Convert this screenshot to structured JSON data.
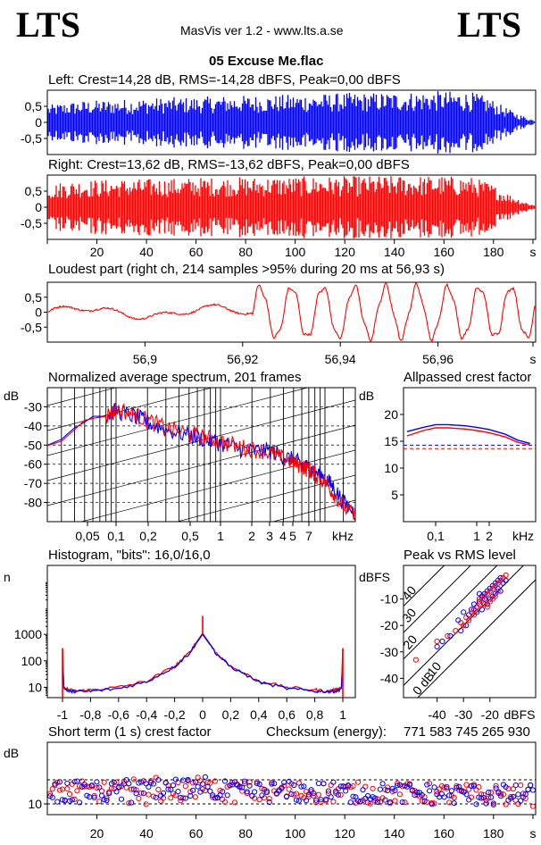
{
  "header": {
    "logo_left": "LTS",
    "logo_right": "LTS",
    "app_title": "MasVis ver 1.2 - www.lts.a.se",
    "file_title": "05 Excuse Me.flac"
  },
  "colors": {
    "left": "#0000ff",
    "right": "#ff0000",
    "axis": "#000000"
  },
  "chart_data": [
    {
      "id": "wave_left",
      "type": "area",
      "title": "Left: Crest=14,28 dB, RMS=-14,28 dBFS, Peak=0,00 dBFS",
      "series": [
        {
          "values": [
            0.55,
            0.62,
            0.68,
            0.7,
            0.72,
            0.74,
            0.76,
            0.78,
            0.8,
            0.8,
            0.82,
            0.84,
            0.85,
            0.86,
            0.86,
            0.88,
            0.9,
            0.9,
            0.92,
            0.94,
            0.94,
            0.95,
            0.96,
            0.97,
            0.98,
            1.0,
            0.98,
            0.96,
            0.8,
            0.5,
            0.25,
            0.05
          ]
        }
      ],
      "x_range": [
        0,
        197
      ],
      "ylim": [
        -1,
        1
      ],
      "yticks": [
        "0,5",
        "0",
        "-0,5"
      ]
    },
    {
      "id": "wave_right",
      "type": "area",
      "title": "Right: Crest=13,62 dB, RMS=-13,62 dBFS, Peak=0,00 dBFS",
      "series": [
        {
          "values": [
            0.7,
            0.82,
            0.86,
            0.88,
            0.88,
            0.9,
            0.9,
            0.92,
            0.92,
            0.94,
            0.95,
            0.95,
            0.96,
            0.96,
            0.97,
            0.97,
            0.98,
            0.98,
            0.98,
            0.99,
            0.99,
            1.0,
            1.0,
            1.0,
            1.0,
            1.0,
            0.98,
            0.96,
            0.8,
            0.5,
            0.25,
            0.05
          ]
        }
      ],
      "x_range": [
        0,
        197
      ],
      "ylim": [
        -1,
        1
      ],
      "xticks": [
        "20",
        "40",
        "60",
        "80",
        "100",
        "120",
        "140",
        "160",
        "180",
        "s"
      ],
      "yticks": [
        "0,5",
        "0",
        "-0,5"
      ]
    },
    {
      "id": "loudest",
      "type": "line",
      "title": "Loudest part (right ch, 214 samples >95% during 20 ms at 56,93 s)",
      "x_range": [
        56.88,
        56.98
      ],
      "ylim": [
        -1,
        1
      ],
      "xticks": [
        "56,9",
        "56,92",
        "56,94",
        "56,96",
        "s"
      ],
      "yticks": [
        "0,5",
        "0",
        "-0,5"
      ]
    },
    {
      "id": "spectrum",
      "type": "line",
      "title": "Normalized average spectrum, 201 frames",
      "ylabel": "dB",
      "ylim": [
        -90,
        -20
      ],
      "yticks": [
        "-30",
        "-40",
        "-50",
        "-60",
        "-70",
        "-80"
      ],
      "xticks": [
        "0,05",
        "0,1",
        "0,2",
        "0,5",
        "1",
        "2",
        "3",
        "4",
        "5",
        "7",
        "kHz"
      ],
      "series": [
        {
          "name": "left",
          "x": [
            0.0125,
            0.02,
            0.03,
            0.04,
            0.05,
            0.06,
            0.08,
            0.1,
            0.15,
            0.2,
            0.3,
            0.5,
            0.7,
            1,
            1.5,
            2,
            3,
            4,
            5,
            6,
            7,
            8,
            10,
            12,
            15,
            20
          ],
          "y": [
            -51,
            -51,
            -47,
            -41,
            -38,
            -35,
            -35,
            -32,
            -35,
            -38,
            -42,
            -45,
            -47,
            -49,
            -52,
            -53,
            -53,
            -56,
            -58,
            -60,
            -62,
            -64,
            -67,
            -72,
            -80,
            -86
          ]
        },
        {
          "name": "right",
          "x": [
            0.0125,
            0.02,
            0.03,
            0.04,
            0.05,
            0.06,
            0.08,
            0.1,
            0.15,
            0.2,
            0.3,
            0.5,
            0.7,
            1,
            1.5,
            2,
            3,
            4,
            5,
            6,
            7,
            8,
            10,
            12,
            15,
            20
          ],
          "y": [
            -51,
            -51,
            -48,
            -42,
            -37,
            -36,
            -35,
            -31,
            -34,
            -37,
            -41,
            -44,
            -46,
            -48,
            -51,
            -52,
            -54,
            -57,
            -59,
            -61,
            -63,
            -65,
            -69,
            -75,
            -82,
            -88
          ]
        }
      ]
    },
    {
      "id": "allpass",
      "type": "line",
      "title": "Allpassed crest factor",
      "ylabel": "dB",
      "ylim": [
        0,
        25
      ],
      "yticks": [
        "20",
        "15",
        "10",
        "5"
      ],
      "xticks": [
        "0,1",
        "1",
        "2",
        "kHz"
      ],
      "series": [
        {
          "name": "left",
          "x": [
            0.02,
            0.05,
            0.1,
            0.2,
            0.5,
            1,
            2,
            5,
            10,
            20
          ],
          "y": [
            16.8,
            17.6,
            18.1,
            18.1,
            17.9,
            17.6,
            17.2,
            16.3,
            15.2,
            14.6
          ]
        },
        {
          "name": "right",
          "x": [
            0.02,
            0.05,
            0.1,
            0.2,
            0.5,
            1,
            2,
            5,
            10,
            20
          ],
          "y": [
            16.0,
            17.0,
            17.5,
            17.5,
            17.3,
            17.0,
            16.6,
            15.8,
            14.8,
            14.3
          ]
        }
      ],
      "dashed_levels": [
        {
          "series": "left",
          "value": 14.28
        },
        {
          "series": "right",
          "value": 13.62
        }
      ]
    },
    {
      "id": "histogram",
      "type": "line",
      "title": "Histogram, \"bits\": 16,0/16,0",
      "ylabel": "n",
      "yscale": "log",
      "ylim": [
        1,
        100000
      ],
      "yticks": [
        "1000",
        "100",
        "10"
      ],
      "xticks": [
        "-1",
        "-0,8",
        "-0,6",
        "-0,4",
        "-0,2",
        "0",
        "0,2",
        "0,4",
        "0,6",
        "0,8",
        "1"
      ],
      "series": [
        {
          "name": "left",
          "x": [
            -1,
            -0.99,
            -0.95,
            -0.9,
            -0.8,
            -0.6,
            -0.4,
            -0.2,
            -0.1,
            0,
            0.1,
            0.2,
            0.4,
            0.6,
            0.8,
            0.9,
            0.95,
            0.99,
            1
          ],
          "y": [
            60,
            9,
            7,
            7,
            7,
            9,
            16,
            60,
            180,
            1000,
            180,
            60,
            16,
            9,
            7,
            7,
            7,
            9,
            60
          ]
        },
        {
          "name": "right",
          "x": [
            -1,
            -0.99,
            -0.95,
            -0.9,
            -0.8,
            -0.6,
            -0.4,
            -0.2,
            -0.1,
            0,
            0.1,
            0.2,
            0.4,
            0.6,
            0.8,
            0.9,
            0.95,
            0.99,
            1
          ],
          "y": [
            300,
            10,
            8,
            7,
            8,
            10,
            17,
            62,
            190,
            1100,
            190,
            62,
            17,
            10,
            8,
            7,
            8,
            10,
            300
          ]
        }
      ]
    },
    {
      "id": "peak_rms",
      "type": "scatter",
      "title": "Peak vs RMS level",
      "ylabel": "dBFS",
      "xlabel": "dBFS",
      "xlim": [
        -50,
        0
      ],
      "ylim": [
        -50,
        0
      ],
      "xticks": [
        "-40",
        "-30",
        "-20",
        "dBFS"
      ],
      "yticks": [
        "-10",
        "-20",
        "-30",
        "-40"
      ],
      "crest_lines": [
        "0 dB",
        "10",
        "20",
        "30",
        "40"
      ],
      "series": [
        {
          "name": "left",
          "points": [
            [
              -32,
              -18
            ],
            [
              -30,
              -15
            ],
            [
              -28,
              -16
            ],
            [
              -27,
              -14
            ],
            [
              -26,
              -12
            ],
            [
              -25,
              -13
            ],
            [
              -24,
              -11
            ],
            [
              -23,
              -9
            ],
            [
              -22,
              -8
            ],
            [
              -21,
              -7
            ],
            [
              -20,
              -6
            ],
            [
              -19,
              -5
            ],
            [
              -18,
              -4
            ],
            [
              -17,
              -3
            ],
            [
              -16,
              -2
            ],
            [
              -18,
              -8
            ],
            [
              -20,
              -10
            ],
            [
              -22,
              -10
            ],
            [
              -24,
              -8
            ],
            [
              -19,
              -9
            ],
            [
              -17,
              -6
            ],
            [
              -15,
              -4
            ],
            [
              -14,
              -3
            ],
            [
              -16,
              -7
            ],
            [
              -21,
              -12
            ],
            [
              -23,
              -14
            ],
            [
              -25,
              -15
            ],
            [
              -29,
              -20
            ],
            [
              -31,
              -22
            ],
            [
              -35,
              -24
            ],
            [
              -38,
              -26
            ],
            [
              -40,
              -28
            ]
          ]
        },
        {
          "name": "right",
          "points": [
            [
              -48,
              -33
            ],
            [
              -40,
              -26
            ],
            [
              -36,
              -24
            ],
            [
              -33,
              -22
            ],
            [
              -31,
              -19
            ],
            [
              -29,
              -17
            ],
            [
              -27,
              -15
            ],
            [
              -26,
              -14
            ],
            [
              -25,
              -13
            ],
            [
              -24,
              -12
            ],
            [
              -23,
              -10
            ],
            [
              -22,
              -9
            ],
            [
              -21,
              -8
            ],
            [
              -20,
              -7
            ],
            [
              -19,
              -6
            ],
            [
              -18,
              -5
            ],
            [
              -17,
              -4
            ],
            [
              -16,
              -3
            ],
            [
              -15,
              -2
            ],
            [
              -14,
              -1
            ],
            [
              -18,
              -9
            ],
            [
              -20,
              -11
            ],
            [
              -22,
              -12
            ],
            [
              -24,
              -10
            ],
            [
              -26,
              -16
            ],
            [
              -28,
              -18
            ],
            [
              -30,
              -20
            ],
            [
              -17,
              -7
            ],
            [
              -19,
              -10
            ],
            [
              -21,
              -13
            ]
          ]
        }
      ]
    },
    {
      "id": "short_crest",
      "type": "scatter",
      "title": "Short term (1 s) crest factor",
      "checksum_label": "Checksum (energy):",
      "checksum_value": "771 583 745 265 930",
      "ylabel": "dB",
      "ylim": [
        5,
        20
      ],
      "yticks": [
        "10"
      ],
      "dashed_levels": [
        10,
        15
      ],
      "xticks": [
        "20",
        "40",
        "60",
        "80",
        "100",
        "120",
        "140",
        "160",
        "180",
        "s"
      ],
      "x_range": [
        0,
        197
      ]
    }
  ]
}
